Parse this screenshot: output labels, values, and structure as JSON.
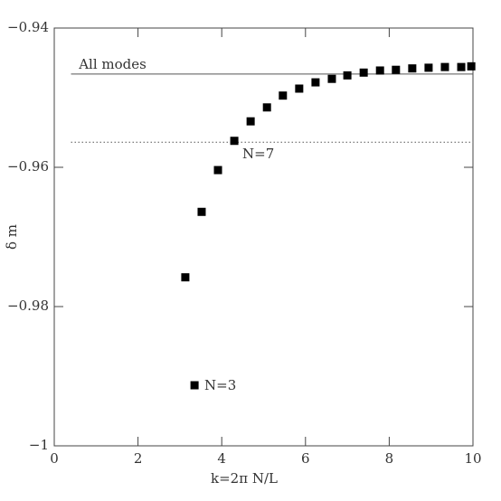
{
  "chart_data": {
    "type": "scatter",
    "x_label": "k=2π N/L",
    "y_label": "δ m",
    "xlim": [
      0,
      10
    ],
    "ylim": [
      -1,
      -0.94
    ],
    "xticks": [
      0,
      2,
      4,
      6,
      8,
      10
    ],
    "yticks": [
      {
        "value": -1,
        "label": "−1"
      },
      {
        "value": -0.98,
        "label": "−0.98"
      },
      {
        "value": -0.96,
        "label": "−0.96"
      },
      {
        "value": -0.94,
        "label": "−0.94"
      }
    ],
    "series": [
      {
        "color": "#000000",
        "x": [
          3.35,
          3.13,
          3.52,
          3.91,
          4.3,
          4.69,
          5.08,
          5.46,
          5.85,
          6.24,
          6.63,
          7.0,
          7.39,
          7.78,
          8.16,
          8.55,
          8.94,
          9.33,
          9.72,
          9.96
        ],
        "values": [
          -0.9913,
          -0.9758,
          -0.9664,
          -0.9604,
          -0.9562,
          -0.9534,
          -0.9514,
          -0.9497,
          -0.9487,
          -0.9478,
          -0.9473,
          -0.9468,
          -0.9464,
          -0.9461,
          -0.946,
          -0.9458,
          -0.9457,
          -0.9456,
          -0.9456,
          -0.9455
        ]
      }
    ],
    "hlines": [
      {
        "label": "All modes",
        "y": -0.9466,
        "x": [
          0.4,
          10
        ],
        "style": "solid"
      },
      {
        "y": -0.9564,
        "x": [
          0.4,
          10
        ],
        "style": "dotted"
      }
    ],
    "annotations": [
      "N=7",
      "N=3"
    ]
  }
}
